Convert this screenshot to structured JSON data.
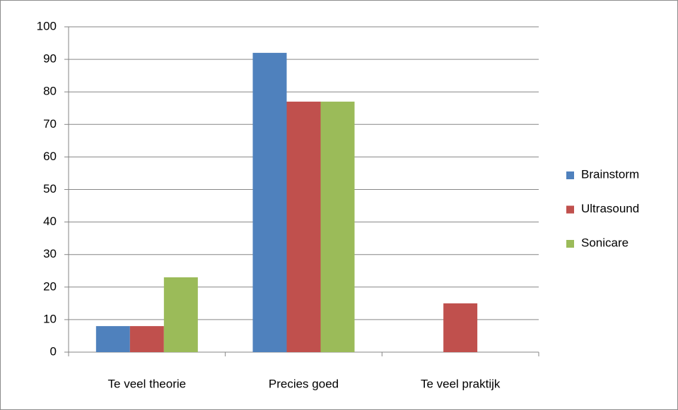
{
  "chart_data": {
    "type": "bar",
    "categories": [
      "Te veel theorie",
      "Precies goed",
      "Te veel praktijk"
    ],
    "series": [
      {
        "name": "Brainstorm",
        "color": "#4f81bd",
        "values": [
          8,
          92,
          0
        ]
      },
      {
        "name": "Ultrasound",
        "color": "#c0504d",
        "values": [
          8,
          77,
          15
        ]
      },
      {
        "name": "Sonicare",
        "color": "#9bbb59",
        "values": [
          23,
          77,
          0
        ]
      }
    ],
    "ylim": [
      0,
      100
    ],
    "yticks": [
      0,
      10,
      20,
      30,
      40,
      50,
      60,
      70,
      80,
      90,
      100
    ],
    "grid": true,
    "legend": "right"
  }
}
